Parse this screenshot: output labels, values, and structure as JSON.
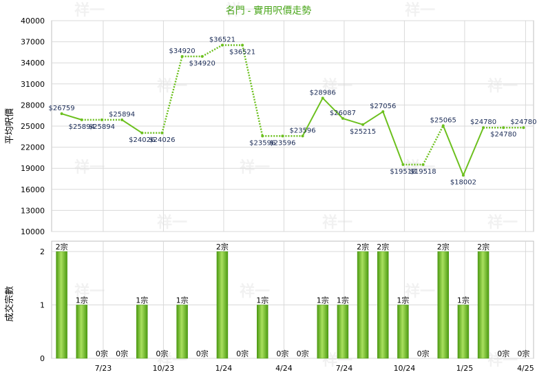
{
  "chart_data": [
    {
      "type": "line",
      "title": "名門 - 實用呎價走勢",
      "ylabel": "平均呎價",
      "ylim": [
        10000,
        40000
      ],
      "yticks": [
        10000,
        13000,
        16000,
        19000,
        22000,
        25000,
        28000,
        31000,
        34000,
        37000,
        40000
      ],
      "grid": true,
      "series": [
        {
          "values": [
            26759,
            25894,
            25894,
            25894,
            24026,
            24026,
            34920,
            34920,
            36521,
            36521,
            23596,
            23596,
            23596,
            28986,
            26087,
            25215,
            27056,
            19518,
            19518,
            25065,
            18002,
            24780,
            24780,
            24780
          ],
          "labels": [
            "$26759",
            "$25894",
            "$25894",
            "$25894",
            "$24026",
            "$24026",
            "$34920",
            "$34920",
            "$36521",
            "$36521",
            "$23596",
            "$23596",
            "$23596",
            "$28986",
            "$26087",
            "$25215",
            "$27056",
            "$19518",
            "$19518",
            "$25065",
            "$18002",
            "$24780",
            "$24780",
            "$24780"
          ],
          "interpolated": [
            false,
            false,
            true,
            false,
            false,
            true,
            false,
            true,
            false,
            true,
            false,
            true,
            false,
            false,
            false,
            false,
            false,
            false,
            true,
            false,
            false,
            false,
            true,
            false
          ]
        }
      ],
      "line_color": "#6cc01e"
    },
    {
      "type": "bar",
      "ylabel": "成交宗數",
      "ylim": [
        0,
        2
      ],
      "yticks": [
        0,
        1,
        2
      ],
      "grid": true,
      "x_tick_labels": [
        "7/23",
        "10/23",
        "1/24",
        "4/24",
        "7/24",
        "10/24",
        "1/25",
        "4/25"
      ],
      "values": [
        2,
        1,
        0,
        0,
        1,
        0,
        1,
        0,
        2,
        0,
        1,
        0,
        0,
        1,
        1,
        2,
        2,
        1,
        0,
        2,
        1,
        2,
        0,
        0
      ],
      "labels": [
        "2宗",
        "1宗",
        "0宗",
        "0宗",
        "1宗",
        "0宗",
        "1宗",
        "0宗",
        "2宗",
        "0宗",
        "1宗",
        "0宗",
        "0宗",
        "1宗",
        "1宗",
        "2宗",
        "2宗",
        "1宗",
        "0宗",
        "2宗",
        "1宗",
        "2宗",
        "0宗",
        "0宗"
      ],
      "bar_color": "#5fb31a"
    }
  ],
  "watermark": "祥一"
}
